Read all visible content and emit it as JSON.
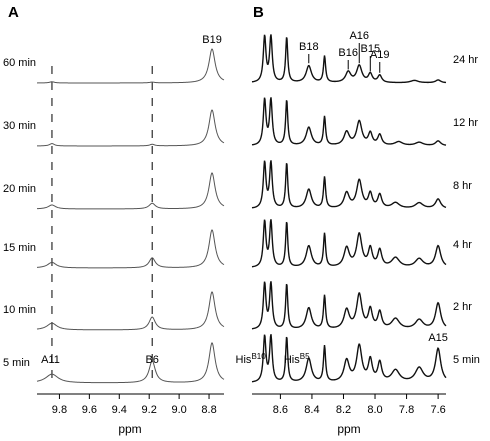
{
  "colors": {
    "ink": "#000000",
    "trace_a": "#555555",
    "trace_b": "#111111"
  },
  "chart_data": [
    {
      "panel": "A",
      "type": "line",
      "xlabel": "ppm",
      "xlim": [
        9.95,
        8.7
      ],
      "x_reversed": true,
      "x_ticks": [
        9.8,
        9.6,
        9.4,
        9.2,
        9.0,
        8.8
      ],
      "x_tick_labels": [
        "9.8",
        "9.6",
        "9.4",
        "9.2",
        "9.0",
        "8.8"
      ],
      "series": [
        {
          "name": "60 min",
          "peaks": [
            {
              "x": 9.85,
              "h": 0.03,
              "w": 0.02
            },
            {
              "x": 9.18,
              "h": 0.02,
              "w": 0.02
            },
            {
              "x": 8.78,
              "h": 0.85,
              "w": 0.025
            }
          ]
        },
        {
          "name": "30 min",
          "peaks": [
            {
              "x": 9.85,
              "h": 0.06,
              "w": 0.02
            },
            {
              "x": 9.18,
              "h": 0.04,
              "w": 0.02
            },
            {
              "x": 8.78,
              "h": 0.9,
              "w": 0.025
            }
          ]
        },
        {
          "name": "20 min",
          "peaks": [
            {
              "x": 9.85,
              "h": 0.1,
              "w": 0.03
            },
            {
              "x": 9.18,
              "h": 0.14,
              "w": 0.025
            },
            {
              "x": 8.78,
              "h": 0.9,
              "w": 0.025
            }
          ]
        },
        {
          "name": "15 min",
          "peaks": [
            {
              "x": 9.85,
              "h": 0.14,
              "w": 0.035
            },
            {
              "x": 9.18,
              "h": 0.25,
              "w": 0.025
            },
            {
              "x": 8.78,
              "h": 0.95,
              "w": 0.025
            }
          ]
        },
        {
          "name": "10 min",
          "peaks": [
            {
              "x": 9.85,
              "h": 0.17,
              "w": 0.04
            },
            {
              "x": 9.18,
              "h": 0.32,
              "w": 0.025
            },
            {
              "x": 8.78,
              "h": 0.95,
              "w": 0.025
            }
          ]
        },
        {
          "name": "5 min",
          "peaks": [
            {
              "x": 9.85,
              "h": 0.22,
              "w": 0.05
            },
            {
              "x": 9.18,
              "h": 0.55,
              "w": 0.025
            },
            {
              "x": 8.78,
              "h": 1.0,
              "w": 0.025
            }
          ]
        }
      ],
      "dashed_lines_x": [
        9.85,
        9.18
      ],
      "annotations": [
        {
          "text": "B19",
          "x": 8.78,
          "trace": 0
        },
        {
          "text": "A11",
          "x": 9.86,
          "trace": 5
        },
        {
          "text": "B6",
          "x": 9.18,
          "trace": 5
        }
      ]
    },
    {
      "panel": "B",
      "type": "line",
      "xlabel": "ppm",
      "xlim": [
        8.78,
        7.55
      ],
      "x_reversed": true,
      "x_ticks": [
        8.6,
        8.4,
        8.2,
        8.0,
        7.8,
        7.6
      ],
      "x_tick_labels": [
        "8.6",
        "8.4",
        "8.2",
        "8.0",
        "7.8",
        "7.6"
      ],
      "series": [
        {
          "name": "24 hr",
          "peaks": [
            {
              "x": 8.7,
              "h": 0.95,
              "w": 0.01
            },
            {
              "x": 8.66,
              "h": 0.95,
              "w": 0.01
            },
            {
              "x": 8.56,
              "h": 0.95,
              "w": 0.008
            },
            {
              "x": 8.42,
              "h": 0.35,
              "w": 0.02
            },
            {
              "x": 8.32,
              "h": 0.55,
              "w": 0.008
            },
            {
              "x": 8.17,
              "h": 0.22,
              "w": 0.02
            },
            {
              "x": 8.1,
              "h": 0.35,
              "w": 0.02
            },
            {
              "x": 8.03,
              "h": 0.18,
              "w": 0.015
            },
            {
              "x": 7.97,
              "h": 0.15,
              "w": 0.015
            },
            {
              "x": 7.75,
              "h": 0.05,
              "w": 0.03
            },
            {
              "x": 7.6,
              "h": 0.06,
              "w": 0.02
            }
          ]
        },
        {
          "name": "12 hr",
          "peaks": [
            {
              "x": 8.7,
              "h": 0.95,
              "w": 0.01
            },
            {
              "x": 8.66,
              "h": 0.95,
              "w": 0.01
            },
            {
              "x": 8.56,
              "h": 0.95,
              "w": 0.008
            },
            {
              "x": 8.42,
              "h": 0.38,
              "w": 0.02
            },
            {
              "x": 8.32,
              "h": 0.6,
              "w": 0.008
            },
            {
              "x": 8.18,
              "h": 0.28,
              "w": 0.02
            },
            {
              "x": 8.1,
              "h": 0.5,
              "w": 0.02
            },
            {
              "x": 8.03,
              "h": 0.25,
              "w": 0.015
            },
            {
              "x": 7.97,
              "h": 0.22,
              "w": 0.015
            },
            {
              "x": 7.85,
              "h": 0.08,
              "w": 0.03
            },
            {
              "x": 7.72,
              "h": 0.07,
              "w": 0.03
            },
            {
              "x": 7.6,
              "h": 0.1,
              "w": 0.02
            }
          ]
        },
        {
          "name": "8 hr",
          "peaks": [
            {
              "x": 8.7,
              "h": 0.95,
              "w": 0.01
            },
            {
              "x": 8.66,
              "h": 0.95,
              "w": 0.01
            },
            {
              "x": 8.56,
              "h": 0.95,
              "w": 0.008
            },
            {
              "x": 8.42,
              "h": 0.4,
              "w": 0.02
            },
            {
              "x": 8.32,
              "h": 0.65,
              "w": 0.008
            },
            {
              "x": 8.18,
              "h": 0.32,
              "w": 0.02
            },
            {
              "x": 8.1,
              "h": 0.58,
              "w": 0.02
            },
            {
              "x": 8.03,
              "h": 0.3,
              "w": 0.015
            },
            {
              "x": 7.97,
              "h": 0.28,
              "w": 0.015
            },
            {
              "x": 7.87,
              "h": 0.12,
              "w": 0.03
            },
            {
              "x": 7.72,
              "h": 0.12,
              "w": 0.03
            },
            {
              "x": 7.6,
              "h": 0.2,
              "w": 0.02
            }
          ]
        },
        {
          "name": "4 hr",
          "peaks": [
            {
              "x": 8.7,
              "h": 0.95,
              "w": 0.01
            },
            {
              "x": 8.66,
              "h": 0.95,
              "w": 0.01
            },
            {
              "x": 8.56,
              "h": 0.95,
              "w": 0.008
            },
            {
              "x": 8.42,
              "h": 0.45,
              "w": 0.02
            },
            {
              "x": 8.32,
              "h": 0.7,
              "w": 0.008
            },
            {
              "x": 8.18,
              "h": 0.4,
              "w": 0.02
            },
            {
              "x": 8.1,
              "h": 0.68,
              "w": 0.02
            },
            {
              "x": 8.03,
              "h": 0.38,
              "w": 0.015
            },
            {
              "x": 7.97,
              "h": 0.35,
              "w": 0.015
            },
            {
              "x": 7.87,
              "h": 0.2,
              "w": 0.03
            },
            {
              "x": 7.72,
              "h": 0.18,
              "w": 0.03
            },
            {
              "x": 7.6,
              "h": 0.45,
              "w": 0.02
            }
          ]
        },
        {
          "name": "2 hr",
          "peaks": [
            {
              "x": 8.7,
              "h": 0.95,
              "w": 0.01
            },
            {
              "x": 8.66,
              "h": 0.95,
              "w": 0.01
            },
            {
              "x": 8.56,
              "h": 0.95,
              "w": 0.008
            },
            {
              "x": 8.42,
              "h": 0.45,
              "w": 0.02
            },
            {
              "x": 8.32,
              "h": 0.7,
              "w": 0.008
            },
            {
              "x": 8.18,
              "h": 0.4,
              "w": 0.02
            },
            {
              "x": 8.1,
              "h": 0.72,
              "w": 0.02
            },
            {
              "x": 8.03,
              "h": 0.4,
              "w": 0.015
            },
            {
              "x": 7.97,
              "h": 0.35,
              "w": 0.015
            },
            {
              "x": 7.87,
              "h": 0.22,
              "w": 0.03
            },
            {
              "x": 7.72,
              "h": 0.2,
              "w": 0.03
            },
            {
              "x": 7.6,
              "h": 0.55,
              "w": 0.02
            }
          ]
        },
        {
          "name": "5 min",
          "peaks": [
            {
              "x": 8.7,
              "h": 0.95,
              "w": 0.01
            },
            {
              "x": 8.66,
              "h": 0.95,
              "w": 0.01
            },
            {
              "x": 8.56,
              "h": 0.95,
              "w": 0.008
            },
            {
              "x": 8.42,
              "h": 0.5,
              "w": 0.02
            },
            {
              "x": 8.32,
              "h": 0.75,
              "w": 0.008
            },
            {
              "x": 8.18,
              "h": 0.45,
              "w": 0.02
            },
            {
              "x": 8.1,
              "h": 0.75,
              "w": 0.02
            },
            {
              "x": 8.03,
              "h": 0.45,
              "w": 0.015
            },
            {
              "x": 7.97,
              "h": 0.4,
              "w": 0.015
            },
            {
              "x": 7.87,
              "h": 0.25,
              "w": 0.03
            },
            {
              "x": 7.72,
              "h": 0.3,
              "w": 0.03
            },
            {
              "x": 7.6,
              "h": 0.7,
              "w": 0.02
            }
          ]
        }
      ],
      "annotations": [
        {
          "text": "B18",
          "x": 8.42,
          "trace": 0
        },
        {
          "text": "B16",
          "x": 8.17,
          "trace": 0
        },
        {
          "text": "A16",
          "x": 8.1,
          "trace": 0
        },
        {
          "text": "B15",
          "x": 8.03,
          "trace": 0
        },
        {
          "text": "A19",
          "x": 7.97,
          "trace": 0
        },
        {
          "text": "A15",
          "x": 7.6,
          "trace": 5
        },
        {
          "text": "His",
          "sup": "B10",
          "x": 8.7,
          "trace": 5
        },
        {
          "text": "His",
          "sup": "B5",
          "x": 8.56,
          "trace": 5
        }
      ]
    }
  ]
}
